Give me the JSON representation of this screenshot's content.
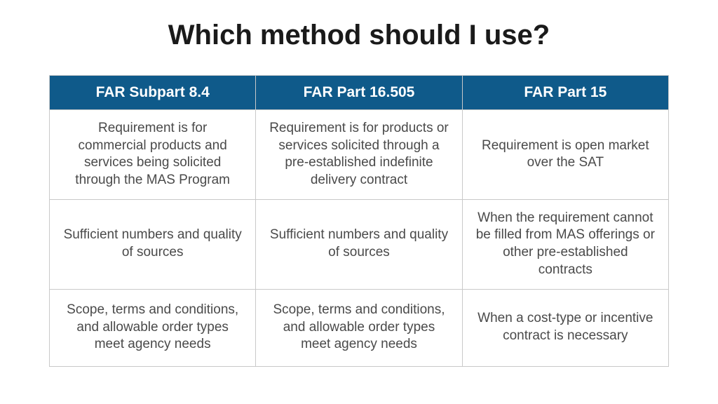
{
  "title": "Which method should I use?",
  "table": {
    "header_bg": "#0f5a8a",
    "header_color": "#ffffff",
    "border_color": "#c9c9c9",
    "cell_text_color": "#4a4a4a",
    "title_color": "#1a1a1a",
    "title_fontsize": 40,
    "header_fontsize": 21,
    "cell_fontsize": 19,
    "columns": [
      "FAR Subpart 8.4",
      "FAR Part 16.505",
      "FAR Part 15"
    ],
    "rows": [
      [
        "Requirement is for commercial products and services being solicited through the MAS Program",
        "Requirement is for products or services solicited through a pre-established indefinite delivery contract",
        "Requirement is open market over the SAT"
      ],
      [
        "Sufficient numbers and quality of sources",
        "Sufficient numbers and quality of sources",
        "When the requirement cannot be filled from MAS offerings or other pre-established contracts"
      ],
      [
        "Scope, terms and conditions, and allowable order types meet agency needs",
        "Scope, terms and conditions, and allowable order types meet agency needs",
        "When a cost-type or incentive contract is necessary"
      ]
    ]
  }
}
